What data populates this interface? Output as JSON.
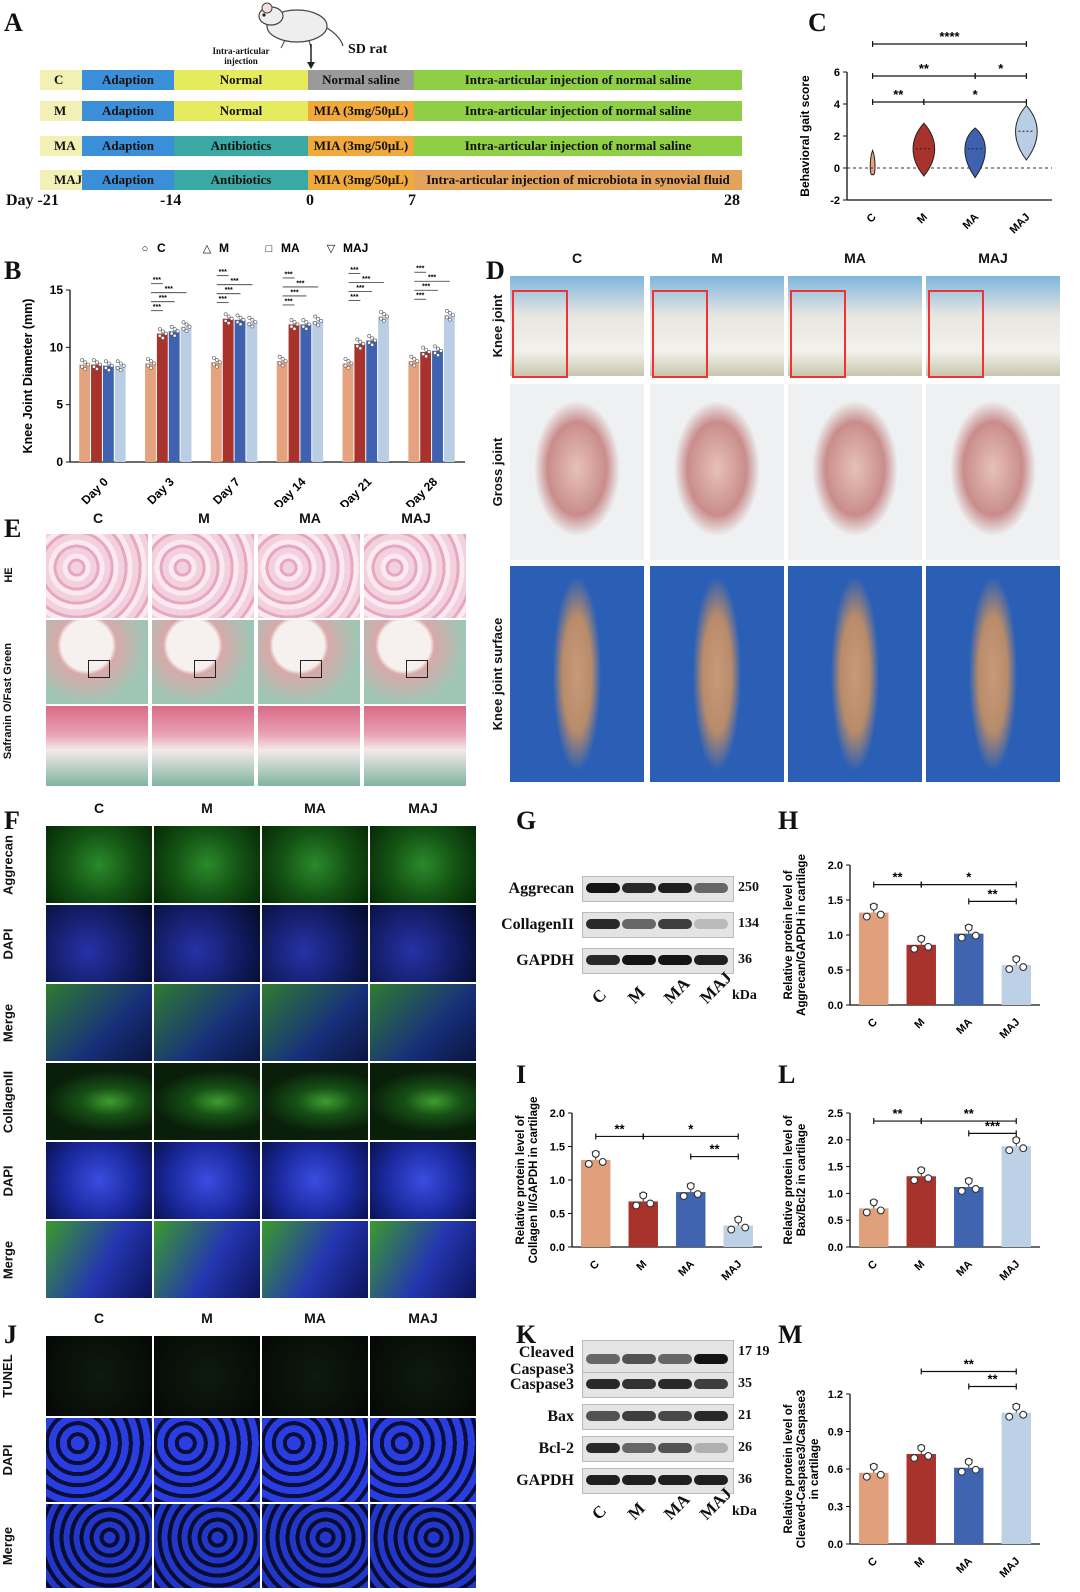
{
  "panel_letters": [
    "A",
    "B",
    "C",
    "D",
    "E",
    "F",
    "G",
    "H",
    "I",
    "J",
    "K",
    "L",
    "M"
  ],
  "panelA": {
    "sd_rat": "SD rat",
    "injection_note": "Intra-articular injection",
    "groups": [
      {
        "code": "C",
        "segs": [
          "Adaption",
          "Normal",
          "Normal saline",
          "Intra-articular injection of normal saline"
        ]
      },
      {
        "code": "M",
        "segs": [
          "Adaption",
          "Normal",
          "MIA (3mg/50μL)",
          "Intra-articular injection of normal saline"
        ]
      },
      {
        "code": "MA",
        "segs": [
          "Adaption",
          "Antibiotics",
          "MIA (3mg/50μL)",
          "Intra-articular injection of normal saline"
        ]
      },
      {
        "code": "MAJ",
        "segs": [
          "Adaption",
          "Antibiotics",
          "MIA (3mg/50μL)",
          "Intra-articular injection of microbiota in synovial fluid"
        ]
      }
    ],
    "days": [
      "Day -21",
      "-14",
      "0",
      "7",
      "28"
    ],
    "colors": {
      "code": "#f3f0b5",
      "adaption": "#3b8fd9",
      "normal": "#e5ea5f",
      "antibiotics": "#3aa9a4",
      "saline": "#9a9a9a",
      "mia": "#f2a93b",
      "final": "#8fcf45",
      "microbiota": "#e3a35d"
    }
  },
  "panelD": {
    "cols": [
      "C",
      "M",
      "MA",
      "MAJ"
    ],
    "rows": [
      "Knee joint",
      "Gross joint",
      "Knee joint surface"
    ]
  },
  "panelE": {
    "cols": [
      "C",
      "M",
      "MA",
      "MAJ"
    ],
    "rows": [
      "HE",
      "Safranin O/Fast Green"
    ]
  },
  "panelF": {
    "cols": [
      "C",
      "M",
      "MA",
      "MAJ"
    ],
    "rows": [
      "Aggrecan",
      "DAPI",
      "Merge",
      "CollagenII",
      "DAPI",
      "Merge"
    ]
  },
  "panelJ": {
    "cols": [
      "C",
      "M",
      "MA",
      "MAJ"
    ],
    "rows": [
      "TUNEL",
      "DAPI",
      "Merge"
    ]
  },
  "panelG": {
    "bands": [
      {
        "name": "Aggrecan",
        "kda": "250"
      },
      {
        "name": "CollagenII",
        "kda": "134"
      },
      {
        "name": "GAPDH",
        "kda": "36"
      }
    ],
    "lanes": [
      "C",
      "M",
      "MA",
      "MAJ"
    ],
    "unit": "kDa"
  },
  "panelK": {
    "bands": [
      {
        "name": "Cleaved Caspase3",
        "kda": "17 19"
      },
      {
        "name": "Caspase3",
        "kda": "35"
      },
      {
        "name": "Bax",
        "kda": "21"
      },
      {
        "name": "Bcl-2",
        "kda": "26"
      },
      {
        "name": "GAPDH",
        "kda": "36"
      }
    ],
    "lanes": [
      "C",
      "M",
      "MA",
      "MAJ"
    ],
    "unit": "kDa"
  },
  "chart_data": [
    {
      "panel": "B",
      "type": "bar",
      "categories": [
        "Day 0",
        "Day 3",
        "Day 7",
        "Day 14",
        "Day 21",
        "Day 28"
      ],
      "series": [
        {
          "name": "C",
          "values": [
            8.5,
            8.6,
            8.7,
            8.8,
            8.6,
            8.8
          ]
        },
        {
          "name": "M",
          "values": [
            8.5,
            11.2,
            12.5,
            12.0,
            10.3,
            9.6
          ]
        },
        {
          "name": "MA",
          "values": [
            8.4,
            11.4,
            12.4,
            12.0,
            10.6,
            9.7
          ]
        },
        {
          "name": "MAJ",
          "values": [
            8.4,
            11.8,
            12.2,
            12.3,
            12.7,
            12.8
          ]
        }
      ],
      "ylabel": "Knee Joint Diameter (mm)",
      "ylim": [
        0,
        15
      ],
      "yticks": [
        0,
        5,
        10,
        15
      ],
      "significance": "***",
      "colors": [
        "#e5a27e",
        "#a8332d",
        "#3f62b0",
        "#b9cee4"
      ]
    },
    {
      "panel": "C",
      "type": "violin",
      "categories": [
        "C",
        "M",
        "MA",
        "MAJ"
      ],
      "medians": [
        0,
        1.2,
        1.2,
        2.3
      ],
      "ylabel": "Behavioral gait score",
      "ylim": [
        -2,
        6
      ],
      "yticks": [
        -2,
        0,
        2,
        4,
        6
      ],
      "significance": [
        "****",
        "**",
        "*",
        "**",
        "*"
      ],
      "colors": [
        "#e5a27e",
        "#a8332d",
        "#3f62b0",
        "#b9cee4"
      ]
    },
    {
      "panel": "H",
      "type": "bar",
      "categories": [
        "C",
        "M",
        "MA",
        "MAJ"
      ],
      "values": [
        1.32,
        0.86,
        1.02,
        0.57
      ],
      "ylabel": "Relative protein level of Aggrecan/GAPDH in cartilage",
      "ylim": [
        0,
        2
      ],
      "yticks": [
        0.0,
        0.5,
        1.0,
        1.5,
        2.0
      ],
      "significance": [
        "**",
        "*",
        "**"
      ]
    },
    {
      "panel": "I",
      "type": "bar",
      "categories": [
        "C",
        "M",
        "MA",
        "MAJ"
      ],
      "values": [
        1.3,
        0.68,
        0.82,
        0.32
      ],
      "ylabel": "Relative protein level of Collagen II/GAPDH in cartilage",
      "ylim": [
        0,
        2
      ],
      "yticks": [
        0.0,
        0.5,
        1.0,
        1.5,
        2.0
      ],
      "significance": [
        "**",
        "*",
        "**"
      ]
    },
    {
      "panel": "L",
      "type": "bar",
      "categories": [
        "C",
        "M",
        "MA",
        "MAJ"
      ],
      "values": [
        0.72,
        1.32,
        1.12,
        1.88
      ],
      "ylabel": "Relative protein level of Bax/Bcl2 in cartilage",
      "ylim": [
        0,
        2.5
      ],
      "yticks": [
        0.0,
        0.5,
        1.0,
        1.5,
        2.0,
        2.5
      ],
      "significance": [
        "**",
        "**",
        "***"
      ]
    },
    {
      "panel": "M",
      "type": "bar",
      "categories": [
        "C",
        "M",
        "MA",
        "MAJ"
      ],
      "values": [
        0.57,
        0.72,
        0.61,
        1.05
      ],
      "ylabel": "Relative protein level of Cleaved-Caspase3/Caspase3 in cartilage",
      "ylim": [
        0,
        1.2
      ],
      "yticks": [
        0.0,
        0.3,
        0.6,
        0.9,
        1.2
      ],
      "significance": [
        "**",
        "**"
      ]
    }
  ]
}
